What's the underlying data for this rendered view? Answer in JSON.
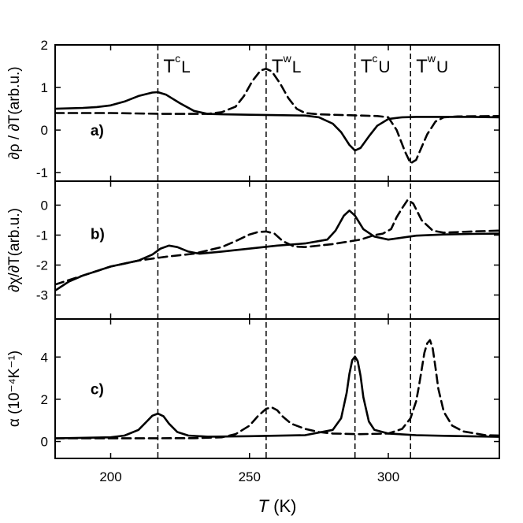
{
  "chart_data": {
    "type": "line",
    "xlabel_italic": "T",
    "xlabel_unit": "(K)",
    "xlim": [
      180,
      340
    ],
    "x_ticks": [
      "200",
      "250",
      "300"
    ],
    "x_tick_values": [
      200,
      250,
      300
    ],
    "transitions": [
      {
        "base": "T",
        "sup": "c",
        "sub": "L",
        "x": 217
      },
      {
        "base": "T",
        "sup": "w",
        "sub": "L",
        "x": 256
      },
      {
        "base": "T",
        "sup": "c",
        "sub": "U",
        "x": 288
      },
      {
        "base": "T",
        "sup": "w",
        "sub": "U",
        "x": 308
      }
    ],
    "series_styles": {
      "solid": "solid",
      "dashed": "dashed"
    },
    "panels": [
      {
        "label": "a)",
        "ylabel": "∂ρ / ∂T(arb.u.)",
        "ylim": [
          -1.2,
          2.0
        ],
        "y_ticks": [
          "-1",
          "0",
          "1",
          "2"
        ],
        "y_tick_values": [
          -1,
          0,
          1,
          2
        ],
        "series": [
          {
            "name": "solid",
            "style": "solid",
            "x": [
              180,
              190,
              195,
              200,
              205,
              210,
              215,
              217,
              220,
              225,
              230,
              235,
              240,
              250,
              260,
              270,
              275,
              280,
              283,
              286,
              288,
              290,
              293,
              296,
              300,
              305,
              310,
              320,
              330,
              340
            ],
            "y": [
              0.5,
              0.52,
              0.54,
              0.58,
              0.67,
              0.8,
              0.88,
              0.89,
              0.83,
              0.63,
              0.45,
              0.38,
              0.37,
              0.36,
              0.35,
              0.34,
              0.3,
              0.15,
              -0.05,
              -0.35,
              -0.48,
              -0.42,
              -0.15,
              0.1,
              0.26,
              0.3,
              0.31,
              0.31,
              0.31,
              0.3
            ]
          },
          {
            "name": "dashed",
            "style": "dashed",
            "x": [
              180,
              200,
              220,
              235,
              240,
              245,
              248,
              251,
              254,
              256,
              258,
              261,
              264,
              267,
              270,
              275,
              280,
              290,
              296,
              300,
              303,
              306,
              308,
              310,
              312,
              314,
              317,
              320,
              325,
              340
            ],
            "y": [
              0.4,
              0.4,
              0.38,
              0.38,
              0.42,
              0.55,
              0.8,
              1.15,
              1.4,
              1.44,
              1.38,
              1.1,
              0.75,
              0.5,
              0.4,
              0.37,
              0.36,
              0.34,
              0.33,
              0.3,
              0.0,
              -0.5,
              -0.78,
              -0.7,
              -0.4,
              -0.1,
              0.2,
              0.3,
              0.32,
              0.33
            ]
          }
        ]
      },
      {
        "label": "b)",
        "ylabel": "∂χ/∂T(arb.u.)",
        "ylim": [
          -3.8,
          0.8
        ],
        "y_ticks": [
          "-3",
          "-2",
          "-1",
          "0"
        ],
        "y_tick_values": [
          -3,
          -2,
          -1,
          0
        ],
        "series": [
          {
            "name": "solid",
            "style": "solid",
            "x": [
              180,
              185,
              190,
              200,
              210,
              215,
              218,
              221,
              224,
              228,
              232,
              240,
              260,
              270,
              278,
              281,
              284,
              286,
              288,
              291,
              295,
              300,
              310,
              320,
              330,
              340
            ],
            "y": [
              -2.85,
              -2.55,
              -2.35,
              -2.05,
              -1.85,
              -1.65,
              -1.45,
              -1.35,
              -1.4,
              -1.55,
              -1.62,
              -1.55,
              -1.35,
              -1.28,
              -1.15,
              -0.85,
              -0.35,
              -0.18,
              -0.35,
              -0.8,
              -1.05,
              -1.15,
              -1.02,
              -0.98,
              -0.96,
              -0.95
            ]
          },
          {
            "name": "dashed",
            "style": "dashed",
            "x": [
              180,
              190,
              200,
              210,
              220,
              230,
              240,
              245,
              250,
              253,
              256,
              259,
              262,
              266,
              270,
              280,
              290,
              295,
              298,
              301,
              303,
              305,
              307,
              309,
              312,
              316,
              320,
              330,
              340
            ],
            "y": [
              -2.65,
              -2.35,
              -2.05,
              -1.85,
              -1.72,
              -1.62,
              -1.4,
              -1.2,
              -0.98,
              -0.9,
              -0.88,
              -0.95,
              -1.2,
              -1.38,
              -1.4,
              -1.3,
              -1.15,
              -1.0,
              -0.95,
              -0.8,
              -0.4,
              -0.1,
              0.18,
              0.05,
              -0.5,
              -0.85,
              -0.92,
              -0.88,
              -0.85
            ]
          }
        ]
      },
      {
        "label": "c)",
        "ylabel": "α (10⁻⁴K⁻¹)",
        "ylim": [
          -0.8,
          5.8
        ],
        "y_ticks": [
          "0",
          "2",
          "4"
        ],
        "y_tick_values": [
          0,
          2,
          4
        ],
        "series": [
          {
            "name": "solid",
            "style": "solid",
            "x": [
              180,
              200,
              205,
              210,
              213,
              215,
              217,
              219,
              221,
              224,
              228,
              235,
              250,
              270,
              280,
              283,
              285,
              286,
              287,
              288,
              289,
              290,
              291,
              293,
              295,
              300,
              310,
              320,
              340
            ],
            "y": [
              0.15,
              0.2,
              0.28,
              0.55,
              0.95,
              1.22,
              1.32,
              1.2,
              0.85,
              0.45,
              0.28,
              0.23,
              0.25,
              0.3,
              0.55,
              1.1,
              2.3,
              3.2,
              3.85,
              4.02,
              3.8,
              3.1,
              2.1,
              0.95,
              0.55,
              0.38,
              0.3,
              0.27,
              0.22
            ]
          },
          {
            "name": "dashed",
            "style": "dashed",
            "x": [
              180,
              200,
              230,
              240,
              245,
              250,
              253,
              256,
              258,
              260,
              262,
              265,
              270,
              275,
              280,
              290,
              300,
              305,
              308,
              310,
              311,
              312,
              313,
              314,
              315,
              316,
              317,
              318,
              320,
              323,
              327,
              335,
              340
            ],
            "y": [
              0.15,
              0.15,
              0.16,
              0.2,
              0.35,
              0.75,
              1.2,
              1.55,
              1.62,
              1.48,
              1.18,
              0.85,
              0.6,
              0.45,
              0.38,
              0.35,
              0.38,
              0.6,
              1.1,
              1.9,
              2.6,
              3.4,
              4.2,
              4.65,
              4.8,
              4.4,
              3.5,
              2.5,
              1.4,
              0.75,
              0.48,
              0.3,
              0.28
            ]
          }
        ]
      }
    ]
  }
}
